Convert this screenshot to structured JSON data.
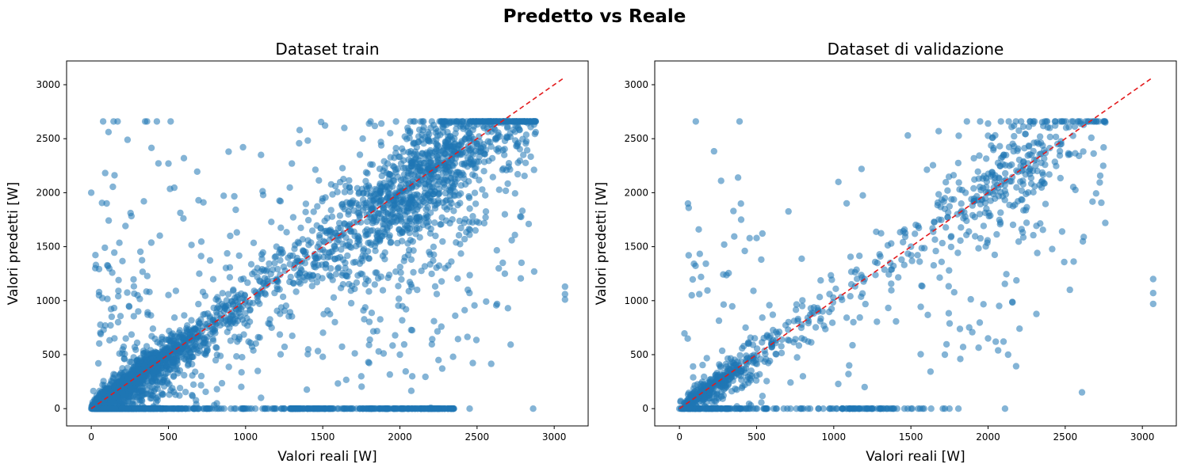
{
  "figure": {
    "title": "Predetto vs Reale"
  },
  "colors": {
    "points": "#1f77b4",
    "reference_line": "#e31a1c",
    "axes": "#000000",
    "background": "#ffffff"
  },
  "chart_data": [
    {
      "type": "scatter",
      "title": "Dataset train",
      "xlabel": "Valori reali [W]",
      "ylabel": "Valori predetti [W]",
      "xlim": [
        -160,
        3220
      ],
      "ylim": [
        -160,
        3220
      ],
      "xticks": [
        0,
        500,
        1000,
        1500,
        2000,
        2500,
        3000
      ],
      "yticks": [
        0,
        500,
        1000,
        1500,
        2000,
        2500,
        3000
      ],
      "grid": false,
      "point_alpha": 0.55,
      "reference_line": {
        "style": "dashed",
        "color": "red",
        "from": [
          0,
          0
        ],
        "to": [
          3070,
          3070
        ]
      },
      "series": [
        {
          "values_sample": [
            [
              0,
              0
            ],
            [
              2330,
              0
            ],
            [
              1740,
              0
            ],
            [
              1000,
              0
            ],
            [
              200,
              0
            ],
            [
              235,
              2490
            ],
            [
              390,
              2415
            ],
            [
              500,
              2270
            ],
            [
              600,
              2320
            ],
            [
              890,
              2380
            ],
            [
              1100,
              2350
            ],
            [
              1300,
              2270
            ],
            [
              1350,
              2580
            ],
            [
              1640,
              2600
            ],
            [
              1800,
              2640
            ],
            [
              1880,
              2640
            ],
            [
              2050,
              2600
            ],
            [
              2200,
              2600
            ],
            [
              2330,
              2650
            ],
            [
              2700,
              2670
            ],
            [
              2750,
              2620
            ],
            [
              2880,
              2560
            ],
            [
              2620,
              2500
            ],
            [
              2800,
              2350
            ],
            [
              2500,
              2450
            ],
            [
              2400,
              2400
            ],
            [
              2200,
              2200
            ],
            [
              2000,
              2000
            ],
            [
              1800,
              1800
            ],
            [
              1600,
              1600
            ],
            [
              1400,
              1400
            ],
            [
              1200,
              1200
            ],
            [
              1000,
              1000
            ],
            [
              800,
              800
            ],
            [
              600,
              600
            ],
            [
              400,
              400
            ],
            [
              200,
              200
            ],
            [
              2870,
              1270
            ],
            [
              2680,
              1250
            ],
            [
              2630,
              970
            ],
            [
              2440,
              1100
            ],
            [
              2700,
              930
            ],
            [
              3070,
              1130
            ],
            [
              3070,
              1060
            ],
            [
              3070,
              1010
            ],
            [
              2780,
              1780
            ],
            [
              2680,
              1800
            ],
            [
              2250,
              450
            ],
            [
              2080,
              300
            ],
            [
              1750,
              300
            ],
            [
              1500,
              480
            ],
            [
              1300,
              0
            ],
            [
              2000,
              500
            ],
            [
              0,
              2000
            ],
            [
              100,
              1900
            ],
            [
              50,
              1050
            ],
            [
              300,
              1050
            ],
            [
              900,
              1600
            ],
            [
              1200,
              1500
            ],
            [
              700,
              1250
            ],
            [
              1100,
              100
            ]
          ]
        }
      ]
    },
    {
      "type": "scatter",
      "title": "Dataset di validazione",
      "xlabel": "Valori reali [W]",
      "ylabel": "Valori predetti [W]",
      "xlim": [
        -160,
        3220
      ],
      "ylim": [
        -160,
        3220
      ],
      "xticks": [
        0,
        500,
        1000,
        1500,
        2000,
        2500,
        3000
      ],
      "yticks": [
        0,
        500,
        1000,
        1500,
        2000,
        2500,
        3000
      ],
      "grid": false,
      "point_alpha": 0.55,
      "reference_line": {
        "style": "dashed",
        "color": "red",
        "from": [
          0,
          0
        ],
        "to": [
          3070,
          3070
        ]
      },
      "series": [
        {
          "values_sample": [
            [
              0,
              0
            ],
            [
              1720,
              0
            ],
            [
              1560,
              0
            ],
            [
              1100,
              0
            ],
            [
              300,
              0
            ],
            [
              60,
              1860
            ],
            [
              125,
              1660
            ],
            [
              270,
              2110
            ],
            [
              380,
              2140
            ],
            [
              1030,
              2100
            ],
            [
              1180,
              2220
            ],
            [
              1480,
              2530
            ],
            [
              1680,
              2570
            ],
            [
              2000,
              2640
            ],
            [
              2400,
              2600
            ],
            [
              2600,
              2640
            ],
            [
              2760,
              2650
            ],
            [
              2450,
              2450
            ],
            [
              2300,
              2300
            ],
            [
              2000,
              2000
            ],
            [
              1800,
              1800
            ],
            [
              1500,
              1500
            ],
            [
              1200,
              1200
            ],
            [
              900,
              900
            ],
            [
              600,
              600
            ],
            [
              300,
              300
            ],
            [
              3070,
              1200
            ],
            [
              3070,
              1070
            ],
            [
              3070,
              970
            ],
            [
              2760,
              1720
            ],
            [
              2530,
              1100
            ],
            [
              2480,
              1640
            ],
            [
              2620,
              1590
            ],
            [
              2000,
              650
            ],
            [
              2050,
              620
            ],
            [
              2130,
              500
            ],
            [
              1820,
              460
            ],
            [
              1720,
              500
            ],
            [
              1200,
              200
            ],
            [
              1100,
              400
            ],
            [
              350,
              1830
            ],
            [
              400,
              1750
            ],
            [
              60,
              1420
            ],
            [
              140,
              1220
            ],
            [
              80,
              1050
            ],
            [
              290,
              1520
            ],
            [
              500,
              1580
            ],
            [
              800,
              300
            ]
          ]
        }
      ]
    }
  ]
}
